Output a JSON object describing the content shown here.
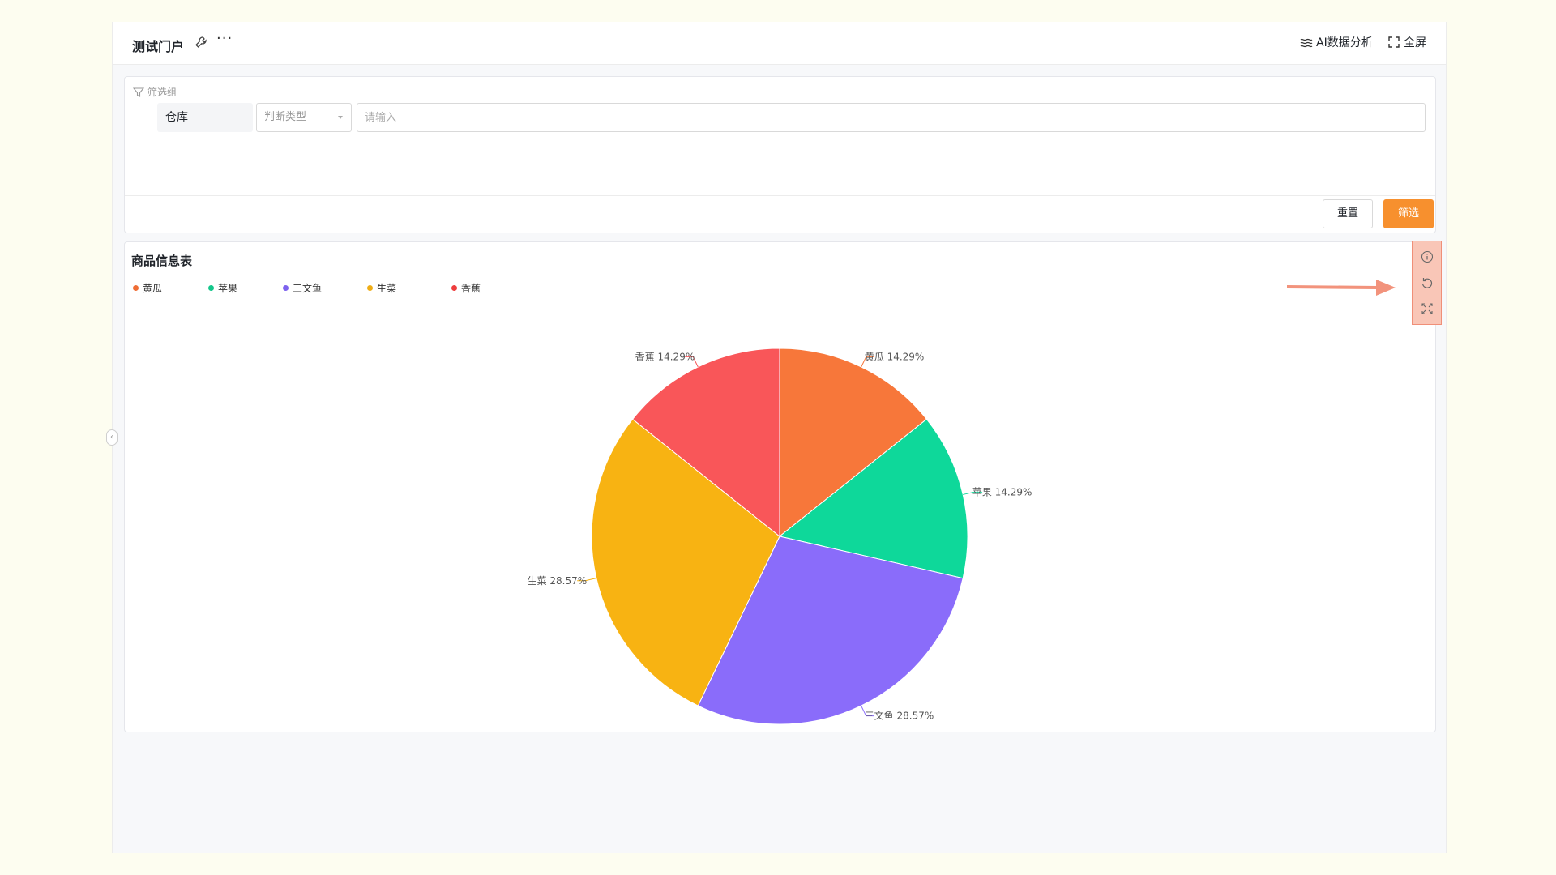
{
  "header": {
    "title": "测试门户",
    "ai_label": "AI数据分析",
    "fullscreen_label": "全屏"
  },
  "filter": {
    "group_label": "筛选组",
    "field_name": "仓库",
    "operator_placeholder": "判断类型",
    "value_placeholder": "请输入",
    "reset_label": "重置",
    "submit_label": "筛选"
  },
  "chart_data": {
    "type": "pie",
    "title": "商品信息表",
    "legend_position": "top-left",
    "slices": [
      {
        "name": "黄瓜",
        "value": 14.29,
        "label": "黄瓜 14.29%",
        "color": "#f7773a"
      },
      {
        "name": "苹果",
        "value": 14.29,
        "label": "苹果 14.29%",
        "color": "#0ed89a"
      },
      {
        "name": "三文鱼",
        "value": 28.57,
        "label": "三文鱼 28.57%",
        "color": "#8a6cfa"
      },
      {
        "name": "生菜",
        "value": 28.57,
        "label": "生菜 28.57%",
        "color": "#f8b312"
      },
      {
        "name": "香蕉",
        "value": 14.29,
        "label": "香蕉 14.29%",
        "color": "#f95659"
      }
    ]
  },
  "legend_colors": {
    "黄瓜": "#ef6d35",
    "苹果": "#14c78b",
    "三文鱼": "#7d62ee",
    "生菜": "#efad15",
    "香蕉": "#ee3d3d"
  },
  "side_tools": [
    "info-icon",
    "refresh-icon",
    "expand-icon"
  ],
  "accent_color": "#f7902e"
}
